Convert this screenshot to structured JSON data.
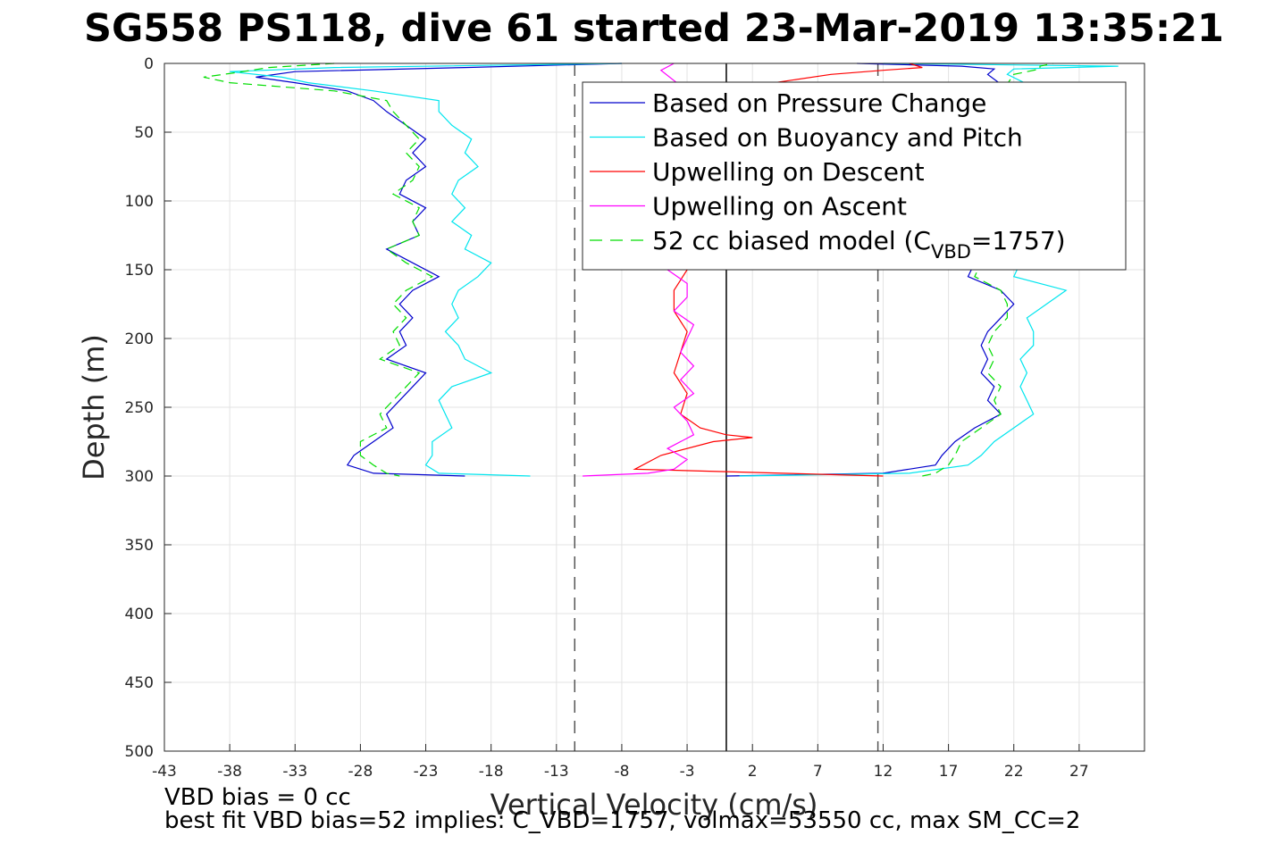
{
  "chart_data": {
    "type": "line",
    "title": "SG558 PS118, dive 61 started 23-Mar-2019 13:35:21",
    "xlabel": "Vertical Velocity (cm/s)",
    "ylabel": "Depth (m)",
    "xlim": [
      -43,
      32
    ],
    "ylim": [
      0,
      500
    ],
    "y_reversed": true,
    "grid": true,
    "xticks": [
      -43,
      -38,
      -33,
      -28,
      -23,
      -18,
      -13,
      -8,
      -3,
      2,
      7,
      12,
      17,
      22,
      27
    ],
    "yticks": [
      0,
      50,
      100,
      150,
      200,
      250,
      300,
      350,
      400,
      450,
      500
    ],
    "legend_position": "top-right",
    "legend": [
      {
        "label": "Based on Pressure Change",
        "color": "#0000cc",
        "style": "solid"
      },
      {
        "label": "Based on Buoyancy and Pitch",
        "color": "#00e5ee",
        "style": "solid"
      },
      {
        "label": "Upwelling on Descent",
        "color": "#ff0000",
        "style": "solid"
      },
      {
        "label": "Upwelling on Ascent",
        "color": "#ff00ff",
        "style": "solid"
      },
      {
        "label_prefix": "52 cc biased model (C",
        "label_sub": "VBD",
        "label_suffix": "=1757)",
        "color": "#00dd00",
        "style": "dashed"
      }
    ],
    "reference_lines": [
      {
        "x": -11.6,
        "style": "dashed",
        "color": "#555555"
      },
      {
        "x": 0,
        "style": "solid",
        "color": "#000000"
      },
      {
        "x": 11.6,
        "style": "dashed",
        "color": "#555555"
      }
    ],
    "series": [
      {
        "name": "Based on Pressure Change",
        "color": "#0000cc",
        "descent": {
          "depth": [
            0,
            3,
            6,
            10,
            14,
            20,
            27,
            35,
            45,
            55,
            65,
            75,
            85,
            95,
            105,
            115,
            125,
            135,
            145,
            155,
            165,
            175,
            185,
            195,
            205,
            215,
            225,
            235,
            245,
            255,
            265,
            275,
            285,
            292,
            298,
            300
          ],
          "velocity": [
            -8,
            -20,
            -33,
            -36,
            -33,
            -29,
            -27,
            -26,
            -24.5,
            -23,
            -24,
            -23,
            -24.5,
            -25,
            -23,
            -24,
            -23.5,
            -26,
            -24,
            -22,
            -24,
            -25,
            -24,
            -25,
            -24.5,
            -26,
            -23,
            -24,
            -25,
            -26,
            -25.5,
            -27,
            -28.5,
            -29,
            -27,
            -20
          ]
        },
        "ascent": {
          "depth": [
            300,
            298,
            292,
            285,
            275,
            265,
            255,
            245,
            235,
            225,
            215,
            205,
            195,
            185,
            175,
            165,
            155,
            145,
            135,
            125,
            115,
            105,
            95,
            85,
            75,
            65,
            55,
            45,
            35,
            25,
            15,
            8,
            4,
            2,
            0
          ],
          "velocity": [
            0,
            12,
            16,
            16.5,
            17.5,
            19,
            21,
            20,
            20.5,
            19.5,
            20,
            19.5,
            20,
            21,
            22,
            21,
            18.5,
            19,
            20.5,
            19.5,
            20,
            21,
            22,
            21,
            21.5,
            22,
            20.5,
            21.5,
            21,
            21.5,
            21,
            20,
            20.5,
            18,
            10
          ]
        }
      },
      {
        "name": "Based on Buoyancy and Pitch",
        "color": "#00e5ee",
        "descent": {
          "depth": [
            0,
            3,
            6,
            10,
            14,
            20,
            27,
            35,
            45,
            55,
            65,
            75,
            85,
            95,
            105,
            115,
            125,
            135,
            145,
            155,
            165,
            175,
            185,
            195,
            205,
            215,
            225,
            235,
            245,
            255,
            265,
            275,
            285,
            292,
            298,
            300
          ],
          "velocity": [
            -8,
            -30,
            -38,
            -34,
            -32,
            -27,
            -22,
            -22,
            -21,
            -19.5,
            -20,
            -19,
            -20.5,
            -21,
            -20,
            -21,
            -19.5,
            -20,
            -18,
            -19,
            -20.5,
            -21,
            -20.5,
            -21.5,
            -20.5,
            -20,
            -18,
            -21,
            -22,
            -21.5,
            -21,
            -22.5,
            -22.5,
            -23,
            -22,
            -15
          ]
        },
        "ascent": {
          "depth": [
            300,
            298,
            292,
            285,
            275,
            265,
            255,
            245,
            235,
            225,
            215,
            205,
            195,
            185,
            175,
            165,
            155,
            145,
            135,
            125,
            115,
            105,
            95,
            85,
            75,
            65,
            55,
            45,
            35,
            25,
            15,
            8,
            4,
            2,
            0
          ],
          "velocity": [
            1,
            14,
            18.5,
            19.5,
            20.5,
            22,
            23.5,
            23,
            22.5,
            23,
            22.5,
            23.5,
            23.5,
            23,
            24.5,
            26,
            22,
            22.5,
            23,
            23.5,
            23.5,
            24,
            23,
            23.5,
            24,
            23.5,
            23,
            24,
            23.5,
            23.5,
            23,
            21.5,
            22,
            30,
            12
          ]
        }
      },
      {
        "name": "Upwelling on Descent",
        "color": "#ff0000",
        "descent": {
          "depth": [
            0,
            3,
            5,
            8,
            15,
            30,
            60,
            90,
            120,
            150,
            165,
            180,
            195,
            210,
            225,
            240,
            255,
            265,
            270,
            272,
            275,
            285,
            295,
            300
          ],
          "velocity": [
            14,
            15,
            12,
            8,
            3,
            2,
            1,
            1,
            0.5,
            -3,
            -4,
            -4,
            -3,
            -3.5,
            -4,
            -3,
            -3.5,
            -2,
            0,
            2,
            -1,
            -5,
            -7,
            12
          ]
        }
      },
      {
        "name": "Upwelling on Ascent",
        "color": "#ff00ff",
        "ascent": {
          "depth": [
            300,
            298,
            295,
            288,
            280,
            270,
            260,
            250,
            240,
            230,
            220,
            210,
            200,
            190,
            180,
            170,
            160,
            150,
            140,
            130,
            120,
            100,
            80,
            60,
            40,
            20,
            5,
            0
          ],
          "velocity": [
            -11,
            -6,
            -4,
            -3,
            -4.5,
            -2.5,
            -3,
            -4,
            -2.5,
            -3.5,
            -2.5,
            -3.5,
            -3,
            -2.5,
            -4,
            -3,
            -3,
            -4.5,
            -3,
            -3,
            -2.5,
            -3,
            -2.5,
            -3,
            -2,
            -3,
            -5,
            -4
          ]
        }
      },
      {
        "name": "52 cc biased model (C_VBD=1757)",
        "color": "#00dd00",
        "style": "dashed",
        "descent": {
          "depth": [
            0,
            3,
            6,
            10,
            14,
            20,
            27,
            35,
            45,
            55,
            65,
            75,
            85,
            95,
            105,
            115,
            125,
            135,
            145,
            155,
            165,
            175,
            185,
            195,
            205,
            215,
            225,
            235,
            245,
            255,
            265,
            275,
            285,
            292,
            298,
            300
          ],
          "velocity": [
            -30,
            -35,
            -37,
            -40,
            -38,
            -30,
            -26,
            -25.5,
            -24.5,
            -23.5,
            -24.5,
            -23.5,
            -24,
            -25.5,
            -23.5,
            -24,
            -23.5,
            -26,
            -24.5,
            -22.5,
            -24.5,
            -25.5,
            -24.5,
            -25.5,
            -25,
            -26.5,
            -23.5,
            -24.5,
            -25.5,
            -26.5,
            -26,
            -28,
            -28,
            -27,
            -26,
            -25
          ]
        },
        "ascent": {
          "depth": [
            300,
            298,
            292,
            285,
            275,
            265,
            255,
            245,
            235,
            225,
            215,
            205,
            195,
            185,
            175,
            165,
            155,
            145,
            135,
            125,
            115,
            105,
            95,
            85,
            75,
            65,
            55,
            45,
            35,
            25,
            15,
            8,
            4,
            2,
            0
          ],
          "velocity": [
            15,
            16,
            17,
            17.5,
            18,
            19.5,
            21,
            20.5,
            21,
            20,
            20.5,
            20,
            20.5,
            21.5,
            21.5,
            21,
            19,
            19.5,
            21,
            20,
            20.5,
            21,
            22,
            21.5,
            22,
            22.5,
            21,
            22,
            21.5,
            22,
            21.5,
            22,
            24,
            24,
            25
          ]
        }
      }
    ]
  },
  "notes": {
    "line1": "VBD bias = 0 cc",
    "line2": "best fit VBD bias=52 implies: C_VBD=1757, volmax=53550 cc, max SM_CC=2"
  }
}
